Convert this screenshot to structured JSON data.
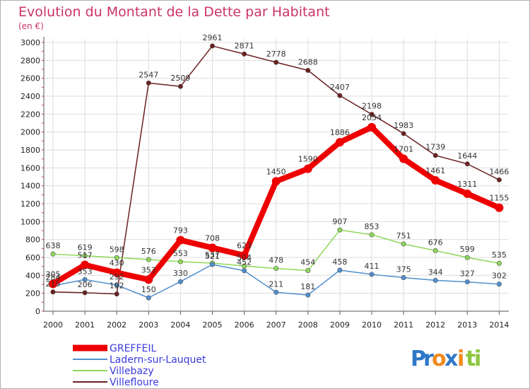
{
  "chart_data": {
    "type": "line",
    "title": "Evolution du Montant de la Dette par Habitant",
    "subtitle": "(en €)",
    "x": [
      "2000",
      "2001",
      "2002",
      "2003",
      "2004",
      "2005",
      "2006",
      "2007",
      "2008",
      "2009",
      "2010",
      "2011",
      "2012",
      "2013",
      "2014"
    ],
    "ylim": [
      0,
      3000
    ],
    "yticks": [
      0,
      200,
      400,
      600,
      800,
      1000,
      1200,
      1400,
      1600,
      1800,
      2000,
      2200,
      2400,
      2600,
      2800,
      3000
    ],
    "grid": true,
    "legend_position": "bottom-left",
    "series": [
      {
        "name": "GREFFEIL",
        "color": "#ee0000",
        "values": [
          305,
          517,
          430,
          353,
          793,
          708,
          623,
          1450,
          1590,
          1886,
          2054,
          1701,
          1461,
          1311,
          1155
        ]
      },
      {
        "name": "Ladern-sur-Lauquet",
        "color": "#4f8fcf",
        "values": [
          284,
          353,
          292,
          150,
          330,
          521,
          452,
          211,
          181,
          458,
          411,
          375,
          344,
          327,
          302
        ]
      },
      {
        "name": "Villebazy",
        "color": "#8ed85a",
        "values": [
          638,
          619,
          598,
          576,
          553,
          537,
          504,
          478,
          454,
          907,
          853,
          751,
          676,
          599,
          535
        ]
      },
      {
        "name": "Villefloure",
        "color": "#6b1f1f",
        "segments": [
          {
            "start": 0,
            "values": [
              215,
              206,
              192
            ]
          },
          {
            "start": 2,
            "values": [
              192,
              2547,
              2509,
              2961,
              2871,
              2778,
              2688,
              2407,
              2198,
              1983,
              1739,
              1644,
              1466
            ]
          }
        ],
        "values": [
          215,
          206,
          192,
          2547,
          2509,
          2961,
          2871,
          2778,
          2688,
          2407,
          2198,
          1983,
          1739,
          1644,
          1466
        ],
        "labels": [
          "215",
          "206",
          "192",
          "2547",
          "2509",
          "2961",
          "2871",
          "2778",
          "2688",
          "2407",
          "2198",
          "1983",
          "1739",
          "1644",
          "1466"
        ]
      }
    ]
  },
  "logo": {
    "text": "Proxiti",
    "letters": [
      "P",
      "r",
      "o",
      "x",
      "i",
      "t",
      "i"
    ],
    "colors": [
      "#2f78c8",
      "#2f78c8",
      "#f08a1e",
      "#2f78c8",
      "#f08a1e",
      "#8cc63f",
      "#8cc63f"
    ]
  }
}
